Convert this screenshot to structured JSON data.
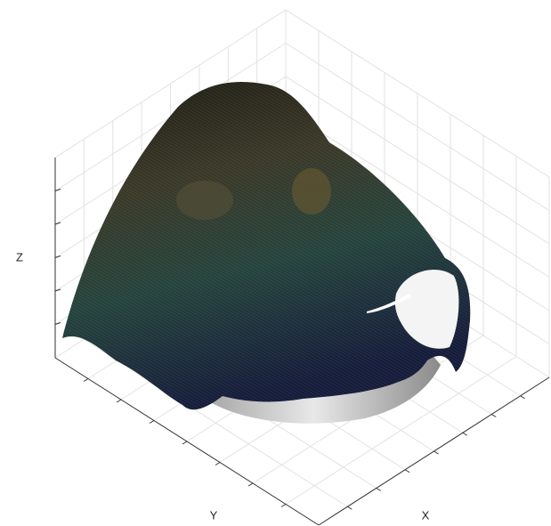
{
  "chart_data": {
    "type": "surface3d",
    "x_label": "X",
    "y_label": "Y",
    "z_label": "Z"
  }
}
